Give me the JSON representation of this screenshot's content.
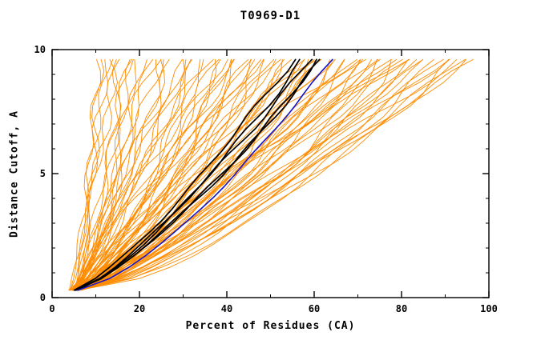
{
  "title": "T0969-D1",
  "chart_data": {
    "type": "line",
    "title": "T0969-D1",
    "xlabel": "Percent of Residues (CA)",
    "ylabel": "Distance Cutoff, A",
    "xlim": [
      0,
      100
    ],
    "ylim": [
      0,
      10
    ],
    "x_ticks": [
      0,
      20,
      40,
      60,
      80,
      100
    ],
    "y_ticks": [
      0,
      5,
      10
    ],
    "x_minor_step": 10,
    "y_minor_step": 1,
    "grid": "off",
    "legend": "none",
    "colors": {
      "models": "#FF8C00",
      "top_models": "#000000",
      "reference": "#1414CC"
    },
    "y_sample_range": {
      "start": 0.3,
      "end": 9.6,
      "points": 21
    },
    "curve_model": "x(y) = x0 + (xtop - x0) * ((y - 0.3)/9.3)^p ; params per curve = [x0, xtop, p]",
    "series": {
      "orange_models": [
        [
          4,
          12,
          0.7
        ],
        [
          5,
          14,
          0.8
        ],
        [
          4.5,
          16,
          0.65
        ],
        [
          6,
          18,
          0.9
        ],
        [
          5,
          20,
          0.75
        ],
        [
          4,
          22,
          0.6
        ],
        [
          5.5,
          24,
          0.85
        ],
        [
          6,
          25,
          0.7
        ],
        [
          4,
          15,
          1.0
        ],
        [
          5,
          11,
          0.6
        ],
        [
          6.5,
          19,
          0.8
        ],
        [
          4.8,
          23,
          0.95
        ],
        [
          5,
          30,
          0.7
        ],
        [
          4,
          32,
          0.8
        ],
        [
          6,
          34,
          0.65
        ],
        [
          5.5,
          36,
          0.9
        ],
        [
          4.2,
          38,
          0.75
        ],
        [
          6.8,
          40,
          0.6
        ],
        [
          5,
          42,
          0.85
        ],
        [
          4.5,
          44,
          0.7
        ],
        [
          6,
          46,
          1.0
        ],
        [
          5.2,
          48,
          0.6
        ],
        [
          4.8,
          50,
          0.8
        ],
        [
          5.6,
          52,
          0.95
        ],
        [
          6.2,
          54,
          0.7
        ],
        [
          4.4,
          56,
          0.75
        ],
        [
          5.8,
          58,
          0.9
        ],
        [
          5,
          60,
          0.65
        ],
        [
          4.6,
          31,
          0.85
        ],
        [
          6.4,
          33,
          0.7
        ],
        [
          5.3,
          35,
          1.05
        ],
        [
          4.9,
          37,
          0.6
        ],
        [
          5.7,
          39,
          0.8
        ],
        [
          6.1,
          41,
          0.9
        ],
        [
          4.3,
          43,
          0.7
        ],
        [
          5.4,
          45,
          0.75
        ],
        [
          6.6,
          47,
          0.85
        ],
        [
          5.1,
          49,
          0.65
        ],
        [
          4.7,
          51,
          0.95
        ],
        [
          5.9,
          53,
          0.7
        ],
        [
          6.3,
          55,
          0.8
        ],
        [
          4.1,
          57,
          0.9
        ],
        [
          5.5,
          59,
          0.6
        ],
        [
          6.7,
          61,
          0.75
        ],
        [
          5.2,
          63,
          0.85
        ],
        [
          4.8,
          65,
          0.7
        ],
        [
          5,
          62,
          0.8
        ],
        [
          6,
          64,
          0.9
        ],
        [
          4.5,
          66,
          0.65
        ],
        [
          5.5,
          68,
          0.75
        ],
        [
          6.5,
          70,
          0.85
        ],
        [
          5,
          72,
          0.7
        ],
        [
          4.2,
          74,
          0.95
        ],
        [
          5.8,
          76,
          0.6
        ],
        [
          6.2,
          78,
          0.8
        ],
        [
          4.6,
          80,
          0.9
        ],
        [
          5.4,
          82,
          0.7
        ],
        [
          6.8,
          84,
          0.75
        ],
        [
          5.1,
          67,
          0.85
        ],
        [
          4.9,
          69,
          0.65
        ],
        [
          5.6,
          71,
          0.9
        ],
        [
          6.4,
          73,
          0.7
        ],
        [
          4.4,
          75,
          0.8
        ],
        [
          5.3,
          77,
          0.95
        ],
        [
          6.1,
          79,
          0.6
        ],
        [
          4.7,
          81,
          0.85
        ],
        [
          5.7,
          83,
          0.75
        ],
        [
          5,
          86,
          0.8
        ],
        [
          6,
          88,
          0.7
        ],
        [
          4.5,
          90,
          0.9
        ],
        [
          5.5,
          92,
          0.65
        ],
        [
          6.5,
          94,
          0.8
        ],
        [
          5,
          96,
          0.75
        ],
        [
          4.8,
          97,
          0.85
        ],
        [
          5.2,
          89,
          0.7
        ],
        [
          5.8,
          93,
          0.9
        ],
        [
          6.2,
          87,
          0.6
        ],
        [
          5,
          40,
          1.2
        ],
        [
          6,
          50,
          1.3
        ],
        [
          4.5,
          60,
          1.15
        ],
        [
          5.5,
          70,
          1.25
        ],
        [
          6,
          30,
          1.2
        ],
        [
          5,
          80,
          1.1
        ],
        [
          4.5,
          26,
          0.75
        ],
        [
          5.5,
          28,
          0.9
        ],
        [
          6,
          21,
          0.65
        ],
        [
          4.2,
          13,
          0.85
        ],
        [
          5.8,
          17,
          0.7
        ],
        [
          6.5,
          10,
          0.75
        ]
      ],
      "black_models": [
        [
          5.0,
          55,
          0.78
        ],
        [
          5.4,
          57,
          0.75
        ],
        [
          5.8,
          59,
          0.8
        ],
        [
          5.2,
          61,
          0.74
        ],
        [
          5.6,
          62,
          0.77
        ]
      ],
      "blue_reference": [
        [
          6.0,
          64,
          0.7
        ]
      ]
    }
  }
}
